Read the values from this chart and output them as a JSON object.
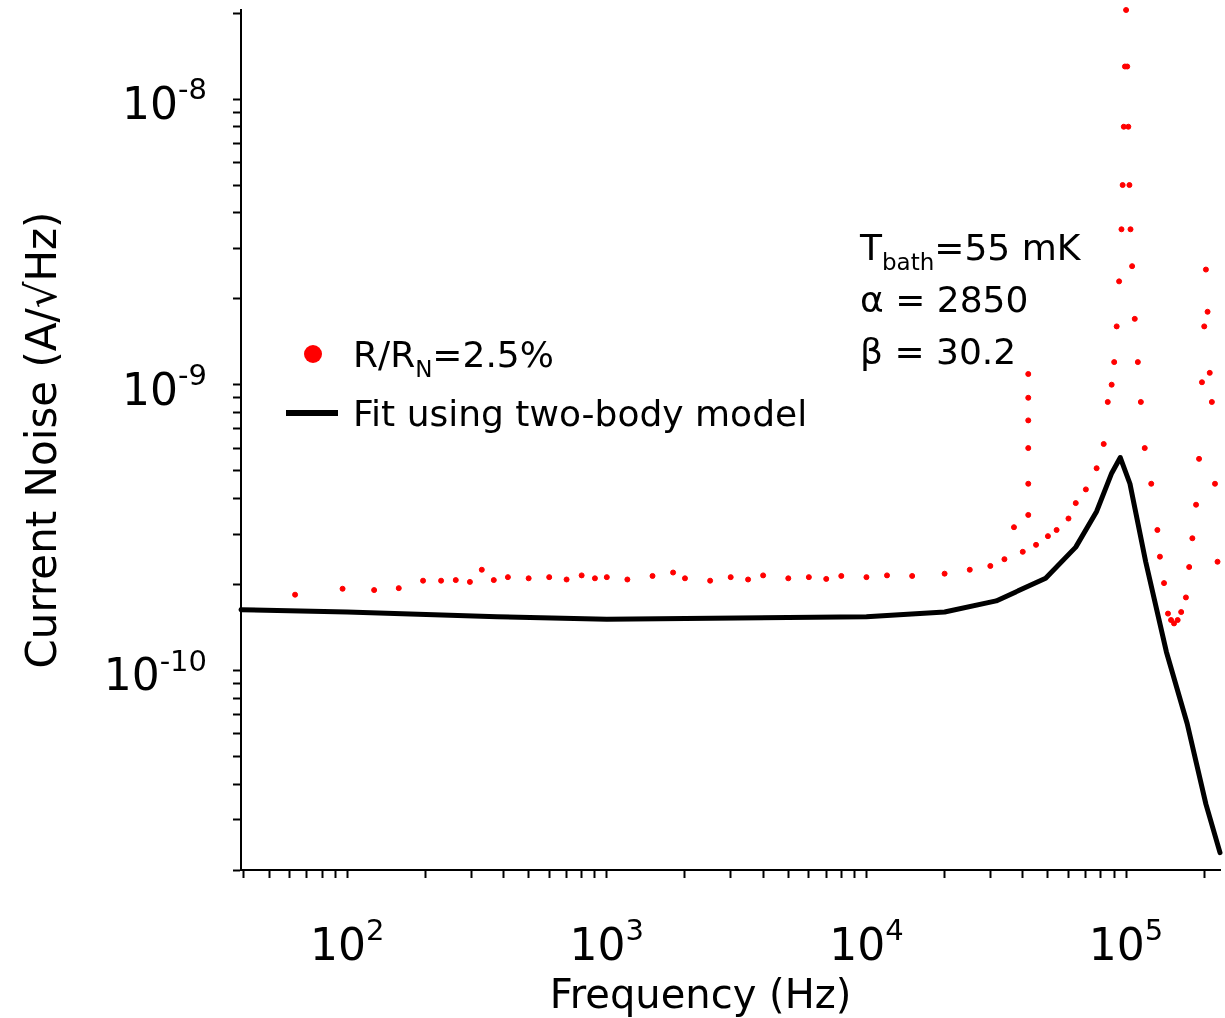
{
  "chart_data": {
    "type": "scatter",
    "xlabel": "Frequency (Hz)",
    "ylabel": "Current Noise (A/√Hz)",
    "log": "xy",
    "grid": false,
    "legend": "left",
    "annotations": [
      "T$_{bath}$=55 mK",
      "α = 2850",
      "β = 30.2"
    ],
    "xlim": [
      39,
      230000
    ],
    "ylim": [
      2e-11,
      2.05e-08
    ],
    "xticks": [
      {
        "value": 40,
        "label": null
      },
      {
        "value": 50,
        "label": null
      },
      {
        "value": 60,
        "label": null
      },
      {
        "value": 70,
        "label": null
      },
      {
        "value": 80,
        "label": null
      },
      {
        "value": 90,
        "label": null
      },
      {
        "value": 100,
        "label": "10$^{2}$"
      },
      {
        "value": 200,
        "label": null
      },
      {
        "value": 300,
        "label": null
      },
      {
        "value": 400,
        "label": null
      },
      {
        "value": 500,
        "label": null
      },
      {
        "value": 600,
        "label": null
      },
      {
        "value": 700,
        "label": null
      },
      {
        "value": 800,
        "label": null
      },
      {
        "value": 900,
        "label": null
      },
      {
        "value": 1000,
        "label": "10$^{3}$"
      },
      {
        "value": 2000,
        "label": null
      },
      {
        "value": 3000,
        "label": null
      },
      {
        "value": 4000,
        "label": null
      },
      {
        "value": 5000,
        "label": null
      },
      {
        "value": 6000,
        "label": null
      },
      {
        "value": 7000,
        "label": null
      },
      {
        "value": 8000,
        "label": null
      },
      {
        "value": 9000,
        "label": null
      },
      {
        "value": 10000,
        "label": "10$^{4}$"
      },
      {
        "value": 20000,
        "label": null
      },
      {
        "value": 30000,
        "label": null
      },
      {
        "value": 40000,
        "label": null
      },
      {
        "value": 50000,
        "label": null
      },
      {
        "value": 60000,
        "label": null
      },
      {
        "value": 70000,
        "label": null
      },
      {
        "value": 80000,
        "label": null
      },
      {
        "value": 90000,
        "label": null
      },
      {
        "value": 100000,
        "label": "10$^{5}$"
      },
      {
        "value": 200000,
        "label": null
      }
    ],
    "yticks": [
      {
        "value": 2e-11,
        "label": null
      },
      {
        "value": 3e-11,
        "label": null
      },
      {
        "value": 4e-11,
        "label": null
      },
      {
        "value": 5e-11,
        "label": null
      },
      {
        "value": 6e-11,
        "label": null
      },
      {
        "value": 7e-11,
        "label": null
      },
      {
        "value": 8e-11,
        "label": null
      },
      {
        "value": 9e-11,
        "label": null
      },
      {
        "value": 1e-10,
        "label": "10$^{-10}$"
      },
      {
        "value": 2e-10,
        "label": null
      },
      {
        "value": 3e-10,
        "label": null
      },
      {
        "value": 4e-10,
        "label": null
      },
      {
        "value": 5e-10,
        "label": null
      },
      {
        "value": 6e-10,
        "label": null
      },
      {
        "value": 7e-10,
        "label": null
      },
      {
        "value": 8e-10,
        "label": null
      },
      {
        "value": 9e-10,
        "label": null
      },
      {
        "value": 1e-09,
        "label": "10$^{-9}$"
      },
      {
        "value": 2e-09,
        "label": null
      },
      {
        "value": 3e-09,
        "label": null
      },
      {
        "value": 4e-09,
        "label": null
      },
      {
        "value": 5e-09,
        "label": null
      },
      {
        "value": 6e-09,
        "label": null
      },
      {
        "value": 7e-09,
        "label": null
      },
      {
        "value": 8e-09,
        "label": null
      },
      {
        "value": 9e-09,
        "label": null
      },
      {
        "value": 1e-08,
        "label": "10$^{-8}$"
      },
      {
        "value": 2e-08,
        "label": null
      }
    ],
    "series": [
      {
        "name": "R/R$_{N}$=2.5%",
        "marker": "circle",
        "color": "#ff0000",
        "x": [
          63,
          96,
          127,
          158,
          196,
          230,
          262,
          297,
          330,
          367,
          416,
          500,
          600,
          700,
          800,
          900,
          1000,
          1200,
          1500,
          1800,
          2000,
          2500,
          3000,
          3500,
          4000,
          5000,
          6000,
          7000,
          8000,
          10000,
          12000,
          15000,
          20000,
          25000,
          30000,
          34000,
          37000,
          40000,
          42000,
          42000,
          42000,
          42000,
          42000,
          42000,
          45000,
          50000,
          54000,
          60000,
          64000,
          70000,
          77000,
          82000,
          85000,
          88000,
          90000,
          92000,
          94000,
          96000,
          97000,
          98000,
          99000,
          100000,
          101000,
          102000,
          103000,
          104000,
          105500,
          108000,
          111000,
          114000,
          118000,
          125000,
          132000,
          135000,
          140000,
          145000,
          149000,
          153000,
          158000,
          163000,
          170000,
          175000,
          180000,
          186000,
          191000,
          196000,
          200000,
          203000,
          206000,
          210000,
          214000,
          220000,
          225000
        ],
        "values": [
          1.84e-10,
          1.93e-10,
          1.91e-10,
          1.94e-10,
          2.06e-10,
          2.06e-10,
          2.07e-10,
          2.04e-10,
          2.25e-10,
          2.07e-10,
          2.12e-10,
          2.1e-10,
          2.12e-10,
          2.08e-10,
          2.15e-10,
          2.1e-10,
          2.12e-10,
          2.08e-10,
          2.14e-10,
          2.2e-10,
          2.1e-10,
          2.06e-10,
          2.12e-10,
          2.08e-10,
          2.15e-10,
          2.1e-10,
          2.12e-10,
          2.09e-10,
          2.14e-10,
          2.12e-10,
          2.15e-10,
          2.14e-10,
          2.18e-10,
          2.25e-10,
          2.32e-10,
          2.45e-10,
          3.17e-10,
          2.6e-10,
          3.5e-10,
          4.5e-10,
          6e-10,
          7.5e-10,
          9e-10,
          1.09e-09,
          2.75e-10,
          2.95e-10,
          3.1e-10,
          3.4e-10,
          3.85e-10,
          4.3e-10,
          5.1e-10,
          6.2e-10,
          8.7e-10,
          1e-09,
          1.2e-09,
          1.6e-09,
          2.3e-09,
          3.5e-09,
          5e-09,
          8e-09,
          1.3e-08,
          2.05e-08,
          1.3e-08,
          8e-09,
          5e-09,
          3.5e-09,
          2.6e-09,
          1.7e-09,
          1.2e-09,
          8.7e-10,
          6e-10,
          4.5e-10,
          3.1e-10,
          2.5e-10,
          2.02e-10,
          1.58e-10,
          1.5e-10,
          1.46e-10,
          1.5e-10,
          1.6e-10,
          1.8e-10,
          2.3e-10,
          2.9e-10,
          3.8e-10,
          5.5e-10,
          1.02e-09,
          1.6e-09,
          2.53e-09,
          1.8e-09,
          1.1e-09,
          8.7e-10,
          4.5e-10,
          2.4e-10
        ]
      },
      {
        "name": "Fit using two-body model",
        "type": "line",
        "marker": "none",
        "line_style": "solid",
        "color": "#000000",
        "x": [
          39,
          100,
          378,
          1000,
          10000,
          20000,
          31600,
          49000,
          64000,
          77000,
          88000,
          95000,
          103500,
          119000,
          143000,
          172000,
          203000,
          230000
        ],
        "values": [
          1.63e-10,
          1.6e-10,
          1.54e-10,
          1.51e-10,
          1.54e-10,
          1.6e-10,
          1.75e-10,
          2.1e-10,
          2.7e-10,
          3.6e-10,
          4.9e-10,
          5.56e-10,
          4.5e-10,
          2.4e-10,
          1.16e-10,
          6.5e-11,
          3.4e-11,
          2.3e-11
        ]
      }
    ]
  }
}
